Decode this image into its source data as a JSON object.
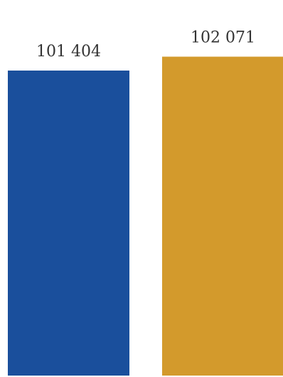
{
  "chart_data": {
    "type": "bar",
    "categories": [
      "",
      ""
    ],
    "values": [
      101404,
      102071
    ],
    "data_labels": [
      "101 404",
      "102 071"
    ],
    "colors": [
      "#1a4f9c",
      "#d39a2c"
    ],
    "title": "",
    "xlabel": "",
    "ylabel": "",
    "grid": false,
    "legend": "none"
  }
}
